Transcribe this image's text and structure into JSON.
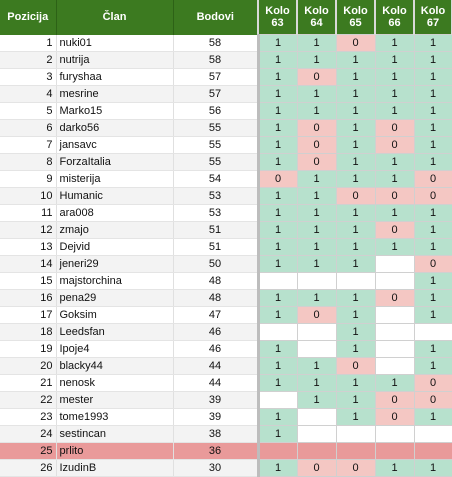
{
  "headers": {
    "pos": "Pozicija",
    "name": "Član",
    "pts": "Bodovi",
    "rounds": [
      "Kolo\n63",
      "Kolo\n64",
      "Kolo\n65",
      "Kolo\n66",
      "Kolo\n67"
    ]
  },
  "rows": [
    {
      "pos": "1",
      "name": "nuki01",
      "pts": "58",
      "r": [
        "1",
        "1",
        "0",
        "1",
        "1"
      ]
    },
    {
      "pos": "2",
      "name": "nutrija",
      "pts": "58",
      "r": [
        "1",
        "1",
        "1",
        "1",
        "1"
      ]
    },
    {
      "pos": "3",
      "name": "furyshaa",
      "pts": "57",
      "r": [
        "1",
        "0",
        "1",
        "1",
        "1"
      ]
    },
    {
      "pos": "4",
      "name": "mesrine",
      "pts": "57",
      "r": [
        "1",
        "1",
        "1",
        "1",
        "1"
      ]
    },
    {
      "pos": "5",
      "name": "Marko15",
      "pts": "56",
      "r": [
        "1",
        "1",
        "1",
        "1",
        "1"
      ]
    },
    {
      "pos": "6",
      "name": "darko56",
      "pts": "55",
      "r": [
        "1",
        "0",
        "1",
        "0",
        "1"
      ]
    },
    {
      "pos": "7",
      "name": "jansavc",
      "pts": "55",
      "r": [
        "1",
        "0",
        "1",
        "0",
        "1"
      ]
    },
    {
      "pos": "8",
      "name": "ForzaItalia",
      "pts": "55",
      "r": [
        "1",
        "0",
        "1",
        "1",
        "1"
      ]
    },
    {
      "pos": "9",
      "name": "misterija",
      "pts": "54",
      "r": [
        "0",
        "1",
        "1",
        "1",
        "0"
      ]
    },
    {
      "pos": "10",
      "name": "Humanic",
      "pts": "53",
      "r": [
        "1",
        "1",
        "0",
        "0",
        "0"
      ]
    },
    {
      "pos": "11",
      "name": "ara008",
      "pts": "53",
      "r": [
        "1",
        "1",
        "1",
        "1",
        "1"
      ]
    },
    {
      "pos": "12",
      "name": "zmajo",
      "pts": "51",
      "r": [
        "1",
        "1",
        "1",
        "0",
        "1"
      ]
    },
    {
      "pos": "13",
      "name": "Dejvid",
      "pts": "51",
      "r": [
        "1",
        "1",
        "1",
        "1",
        "1"
      ]
    },
    {
      "pos": "14",
      "name": "jeneri29",
      "pts": "50",
      "r": [
        "1",
        "1",
        "1",
        "",
        "0"
      ]
    },
    {
      "pos": "15",
      "name": "majstorchina",
      "pts": "48",
      "r": [
        "",
        "",
        "",
        "",
        "1"
      ]
    },
    {
      "pos": "16",
      "name": "pena29",
      "pts": "48",
      "r": [
        "1",
        "1",
        "1",
        "0",
        "1"
      ]
    },
    {
      "pos": "17",
      "name": "Goksim",
      "pts": "47",
      "r": [
        "1",
        "0",
        "1",
        "",
        "1"
      ]
    },
    {
      "pos": "18",
      "name": "Leedsfan",
      "pts": "46",
      "r": [
        "",
        "",
        "1",
        "",
        ""
      ]
    },
    {
      "pos": "19",
      "name": "Ipoje4",
      "pts": "46",
      "r": [
        "1",
        "",
        "1",
        "",
        "1"
      ]
    },
    {
      "pos": "20",
      "name": "blacky44",
      "pts": "44",
      "r": [
        "1",
        "1",
        "0",
        "",
        "1"
      ]
    },
    {
      "pos": "21",
      "name": "nenosk",
      "pts": "44",
      "r": [
        "1",
        "1",
        "1",
        "1",
        "0"
      ]
    },
    {
      "pos": "22",
      "name": "mester",
      "pts": "39",
      "r": [
        "",
        "1",
        "1",
        "0",
        "0"
      ]
    },
    {
      "pos": "23",
      "name": "tome1993",
      "pts": "39",
      "r": [
        "1",
        "",
        "1",
        "0",
        "1"
      ]
    },
    {
      "pos": "24",
      "name": "sestincan",
      "pts": "38",
      "r": [
        "1",
        "",
        "",
        "",
        ""
      ]
    },
    {
      "pos": "25",
      "name": "prlito",
      "pts": "36",
      "r": [
        "",
        "",
        "",
        "",
        ""
      ],
      "highlight": true
    },
    {
      "pos": "26",
      "name": "IzudinB",
      "pts": "30",
      "r": [
        "1",
        "0",
        "0",
        "1",
        "1"
      ]
    }
  ]
}
